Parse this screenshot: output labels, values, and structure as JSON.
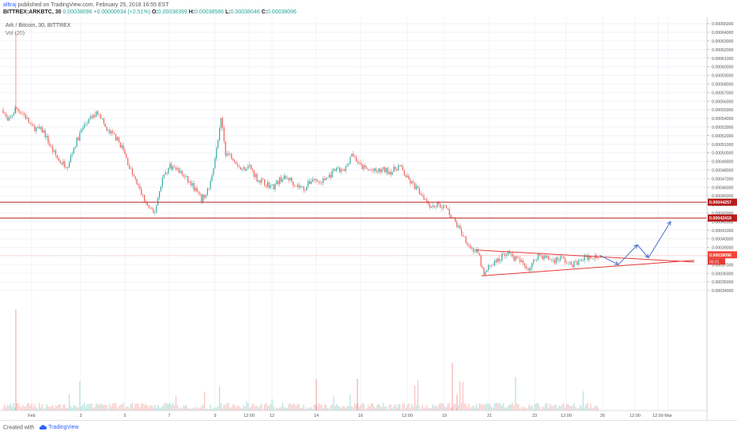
{
  "header": {
    "author": "alltraj",
    "published_text": "published on TradingView.com, February 25, 2018 16:55 EST",
    "symbol": "BITTREX:ARKBTC, 30",
    "last": "0.00038096",
    "change": "+0.00000934 (+2.51%)",
    "ohlc": [
      {
        "k": "O:",
        "v": "0.00038399"
      },
      {
        "k": "H:",
        "v": "0.00038586"
      },
      {
        "k": "L:",
        "v": "0.00038046"
      },
      {
        "k": "C:",
        "v": "0.00038096"
      }
    ]
  },
  "pane_label": "Ark / Bitcoin, 30, BITTREX",
  "vol_label": "Vol (20)",
  "footer": {
    "created_with": "Created with",
    "brand": "TradingView"
  },
  "colors": {
    "up": "#26a69a",
    "down": "#ef5350",
    "hline": "#b71c1c",
    "trend": "#e53935",
    "arrow": "#4a6fc9",
    "price_line": "#f44336"
  },
  "chart_data": {
    "type": "candlestick",
    "x_ticks": [
      "Feb",
      "3",
      "5",
      "7",
      "9",
      "12:00",
      "12",
      "14",
      "16",
      "12:00",
      "19",
      "21",
      "23",
      "12:00",
      "26",
      "12:00",
      "12:00",
      "Mar"
    ],
    "y_ticks": [
      "0.00065000",
      "0.00064000",
      "0.00063000",
      "0.00062000",
      "0.00061000",
      "0.00060000",
      "0.00059000",
      "0.00058000",
      "0.00057000",
      "0.00056000",
      "0.00055000",
      "0.00054000",
      "0.00053000",
      "0.00052000",
      "0.00051000",
      "0.00050000",
      "0.00049000",
      "0.00048000",
      "0.00047000",
      "0.00046000",
      "0.00045000",
      "0.00044000",
      "0.00043000",
      "0.00042000",
      "0.00041000",
      "0.00040000",
      "0.00039000",
      "0.00038000",
      "0.00037000",
      "0.00036000",
      "0.00035000",
      "0.00034000"
    ],
    "ylim": [
      0.00034,
      0.00065
    ],
    "price_path": [
      [
        0,
        0.00056
      ],
      [
        10,
        0.000535
      ],
      [
        20,
        0.000552
      ],
      [
        30,
        0.000545
      ],
      [
        40,
        0.00053
      ],
      [
        55,
        0.000525
      ],
      [
        65,
        0.000505
      ],
      [
        75,
        0.00049
      ],
      [
        85,
        0.000485
      ],
      [
        95,
        0.00051
      ],
      [
        105,
        0.00053
      ],
      [
        115,
        0.00054
      ],
      [
        125,
        0.000548
      ],
      [
        135,
        0.000525
      ],
      [
        145,
        0.00052
      ],
      [
        155,
        0.000505
      ],
      [
        165,
        0.00048
      ],
      [
        175,
        0.00046
      ],
      [
        185,
        0.00044
      ],
      [
        195,
        0.000428
      ],
      [
        205,
        0.00047
      ],
      [
        215,
        0.000485
      ],
      [
        225,
        0.00048
      ],
      [
        235,
        0.00047
      ],
      [
        245,
        0.00046
      ],
      [
        255,
        0.000445
      ],
      [
        265,
        0.00046
      ],
      [
        275,
        0.00051
      ],
      [
        280,
        0.00054
      ],
      [
        285,
        0.0005
      ],
      [
        295,
        0.000495
      ],
      [
        305,
        0.00048
      ],
      [
        315,
        0.000485
      ],
      [
        325,
        0.00047
      ],
      [
        335,
        0.000465
      ],
      [
        345,
        0.00046
      ],
      [
        355,
        0.00047
      ],
      [
        365,
        0.00047
      ],
      [
        375,
        0.000462
      ],
      [
        385,
        0.000458
      ],
      [
        395,
        0.00047
      ],
      [
        405,
        0.000465
      ],
      [
        415,
        0.000472
      ],
      [
        425,
        0.00048
      ],
      [
        435,
        0.000478
      ],
      [
        445,
        0.0005
      ],
      [
        455,
        0.000485
      ],
      [
        465,
        0.00048
      ],
      [
        475,
        0.000478
      ],
      [
        485,
        0.00048
      ],
      [
        495,
        0.000478
      ],
      [
        505,
        0.000485
      ],
      [
        515,
        0.00047
      ],
      [
        525,
        0.00046
      ],
      [
        535,
        0.00045
      ],
      [
        545,
        0.000438
      ],
      [
        555,
        0.00044
      ],
      [
        565,
        0.000435
      ],
      [
        575,
        0.00042
      ],
      [
        585,
        0.000405
      ],
      [
        595,
        0.00039
      ],
      [
        605,
        0.000382
      ],
      [
        612,
        0.000357
      ],
      [
        620,
        0.00037
      ],
      [
        630,
        0.000375
      ],
      [
        640,
        0.000385
      ],
      [
        650,
        0.000378
      ],
      [
        660,
        0.000372
      ],
      [
        670,
        0.000365
      ],
      [
        680,
        0.000382
      ],
      [
        690,
        0.000378
      ],
      [
        700,
        0.000375
      ],
      [
        710,
        0.000378
      ],
      [
        720,
        0.00037
      ],
      [
        730,
        0.000372
      ],
      [
        740,
        0.000378
      ],
      [
        750,
        0.00038
      ],
      [
        758,
        0.000381
      ]
    ],
    "horizontal_levels": [
      {
        "price": 0.00044257,
        "label": "0.00044257"
      },
      {
        "price": 0.00042419,
        "label": "0.00042419"
      }
    ],
    "current_price": {
      "price": 0.00038096,
      "label": "0.00038096",
      "countdown": "05:01"
    },
    "triangle": {
      "upper": [
        [
          27,
          0.000387
        ],
        [
          77,
          0.000373
        ]
      ],
      "lower": [
        [
          0,
          0.000357
        ],
        [
          75,
          0.000373
        ]
      ]
    },
    "projection_arrows": [
      [
        758,
        0.000381
      ],
      [
        782,
        0.00037
      ],
      [
        806,
        0.000393
      ],
      [
        820,
        0.000378
      ],
      [
        848,
        0.00042
      ]
    ]
  }
}
